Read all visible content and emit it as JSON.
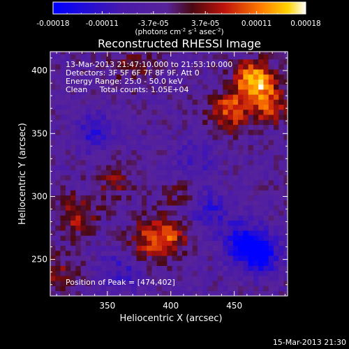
{
  "chart_data": {
    "type": "heatmap",
    "title": "Reconstructed RHESSI Image",
    "xlabel": "Heliocentric X (arcsec)",
    "ylabel": "Heliocentric Y (arcsec)",
    "xlim": [
      305,
      492
    ],
    "ylim": [
      221,
      415
    ],
    "x_ticks": [
      350,
      400,
      450
    ],
    "y_ticks": [
      250,
      300,
      350,
      400
    ],
    "colorbar": {
      "min": -0.00018,
      "max": 0.00018,
      "tick_labels": [
        "-0.00018",
        "-0.00011",
        "-3.7e-05",
        "3.7e-05",
        "0.00011",
        "0.00018"
      ],
      "unit_base": "(photons cm",
      "unit_exp1": "-2",
      "unit_mid": " s",
      "unit_exp2": "-1",
      "unit_mid2": " asec",
      "unit_exp3": "-2",
      "unit_end": ")"
    },
    "annotations": [
      "13-Mar-2013 21:47:10.000 to 21:53:10.000",
      "Detectors: 3F 5F 6F 7F 8F 9F, Att 0",
      "Energy Range: 25.0 - 50.0 keV",
      "Clean     Total counts: 1.05E+04"
    ],
    "peak_label": "Position of Peak = [474,402]",
    "peak_position": [
      474,
      402
    ],
    "sources": [
      {
        "x": 466,
        "y": 392,
        "value": 0.00018
      },
      {
        "x": 446,
        "y": 368,
        "value": 0.00012
      },
      {
        "x": 478,
        "y": 372,
        "value": 0.0001
      },
      {
        "x": 325,
        "y": 285,
        "value": 9e-05
      },
      {
        "x": 398,
        "y": 268,
        "value": 0.00011
      },
      {
        "x": 380,
        "y": 265,
        "value": 8e-05
      },
      {
        "x": 355,
        "y": 312,
        "value": 6e-05
      },
      {
        "x": 312,
        "y": 240,
        "value": 6e-05
      },
      {
        "x": 370,
        "y": 405,
        "value": 6e-05
      },
      {
        "x": 408,
        "y": 302,
        "value": 4e-05
      },
      {
        "x": 470,
        "y": 255,
        "value": -0.00016
      },
      {
        "x": 455,
        "y": 265,
        "value": -0.0001
      },
      {
        "x": 430,
        "y": 290,
        "value": -8e-05
      },
      {
        "x": 340,
        "y": 350,
        "value": -8e-05
      },
      {
        "x": 360,
        "y": 240,
        "value": -7e-05
      },
      {
        "x": 420,
        "y": 330,
        "value": -6e-05
      }
    ]
  },
  "footer": {
    "timestamp": "15-Mar-2013 21:30"
  }
}
